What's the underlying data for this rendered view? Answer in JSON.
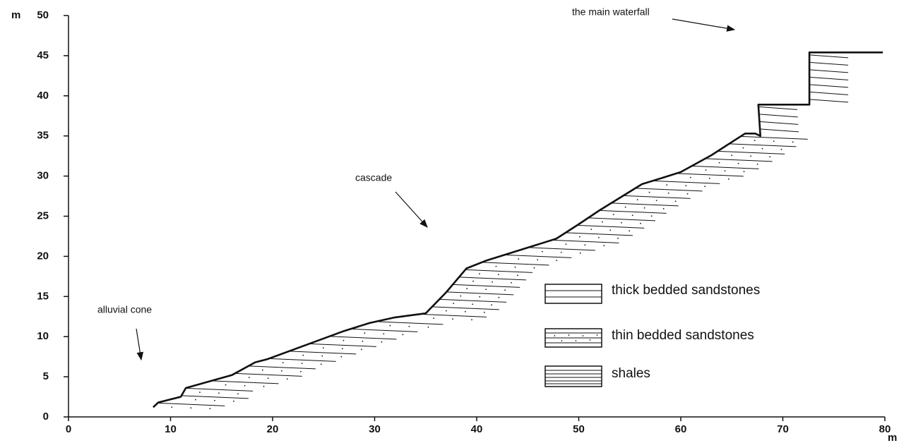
{
  "chart_data": {
    "type": "line",
    "y_label": "m",
    "x_label": "m",
    "x": [
      8.3,
      8.8,
      11,
      11.5,
      16,
      18.3,
      19.5,
      24,
      27,
      29.5,
      32,
      35,
      37,
      39,
      41,
      47.8,
      50,
      52,
      56.2,
      58,
      60,
      63,
      66.3,
      67.3,
      67.8,
      67.6,
      72.6,
      72.6,
      79.8
    ],
    "values": [
      1.2,
      1.8,
      2.5,
      3.6,
      5.2,
      6.8,
      7.2,
      9.3,
      10.7,
      11.7,
      12.4,
      12.9,
      15.5,
      18.5,
      19.5,
      22.2,
      24,
      25.7,
      29,
      29.7,
      30.5,
      32.6,
      35.3,
      35.3,
      35,
      38.9,
      38.9,
      45.4,
      45.4
    ],
    "color": "#111111",
    "xlim": [
      0,
      80
    ],
    "xticks": [
      0,
      10,
      20,
      30,
      40,
      50,
      60,
      70,
      80
    ],
    "ylim": [
      0,
      50
    ],
    "yticks": [
      0,
      5,
      10,
      15,
      20,
      25,
      30,
      35,
      40,
      45,
      50
    ],
    "annotations": [
      "the main waterfall",
      "cascade",
      "alluvial cone"
    ],
    "legend": [
      "thick bedded sandstones",
      "thin bedded sandstones",
      "shales"
    ]
  }
}
